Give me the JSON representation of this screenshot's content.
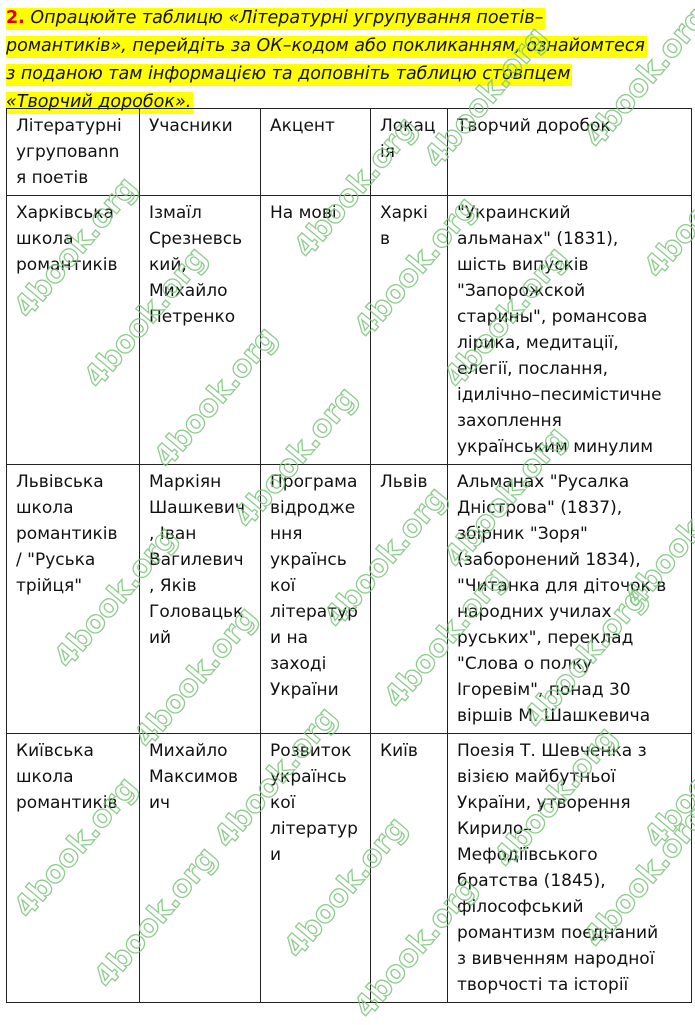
{
  "task": {
    "number": "2.",
    "lines": [
      " Опрацюйте таблицю «Літературні угрупування поетів–",
      "романтиків», перейдіть за ОК–кодом або покликанням, ознайомтеся",
      "з поданою там інформацією та доповніть таблицю стовпцем",
      "«Творчий доробок»."
    ]
  },
  "table": {
    "headers": [
      [
        "Літературні",
        "угруповann",
        "я поетів"
      ],
      [
        "Учасники"
      ],
      [
        "Акцент"
      ],
      [
        "Локац",
        "ія"
      ],
      [
        "Творчий доробок"
      ]
    ],
    "rows": [
      [
        [
          "Харківська",
          "школа",
          "романтиків"
        ],
        [
          "Ізмаїл",
          "Срезневсь",
          "кий,",
          "Михайло",
          "Петренко"
        ],
        [
          "На мові"
        ],
        [
          "Харкі",
          "в"
        ],
        [
          "\"Украинский",
          "альманах\" (1831),",
          "шість випусків",
          "\"Запорожской",
          "старины\", романсова",
          "лірика, медитації,",
          "елегії, послання,",
          "ідилічно–песимістичне",
          "захоплення",
          "українським минулим"
        ]
      ],
      [
        [
          "Львівська",
          "школа",
          "романтиків",
          "/ \"Руська",
          "трійця\""
        ],
        [
          "Маркіян",
          "Шашкевич",
          ", Іван",
          "Вагилевич",
          ", Яків",
          "Головацьк",
          "ий"
        ],
        [
          "Програма",
          "відродже",
          "ння",
          "українсь",
          "кої",
          "літератур",
          "и на",
          "заході",
          "України"
        ],
        [
          "Львів"
        ],
        [
          "Альманах \"Русалка",
          "Дністрова\" (1837),",
          "збірник \"Зоря\"",
          "(заборонений 1834),",
          "\"Читанка для діточок в",
          "народних училах",
          "руських\", переклад",
          "\"Слова о полку",
          "Ігоревім\", понад 30",
          "віршів М. Шашкевича"
        ]
      ],
      [
        [
          "Київська",
          "школа",
          "романтиків"
        ],
        [
          "Михайло",
          "Максимов",
          "ич"
        ],
        [
          "Розвиток",
          "українсь",
          "кої",
          "літератур",
          "и"
        ],
        [
          "Київ"
        ],
        [
          "Поезія Т. Шевченка з",
          "візією майбутньої",
          "України, утворення",
          "Кирило–",
          "Мефодіївського",
          "братства (1845),",
          "філософський",
          "романтизм поєднаний",
          "з вивченням народної",
          "творчості та історії"
        ]
      ]
    ]
  },
  "watermark": "4book.org",
  "colors": {
    "highlight": "#ffff00",
    "number": "#e00000",
    "watermark": "#7bc47b"
  }
}
